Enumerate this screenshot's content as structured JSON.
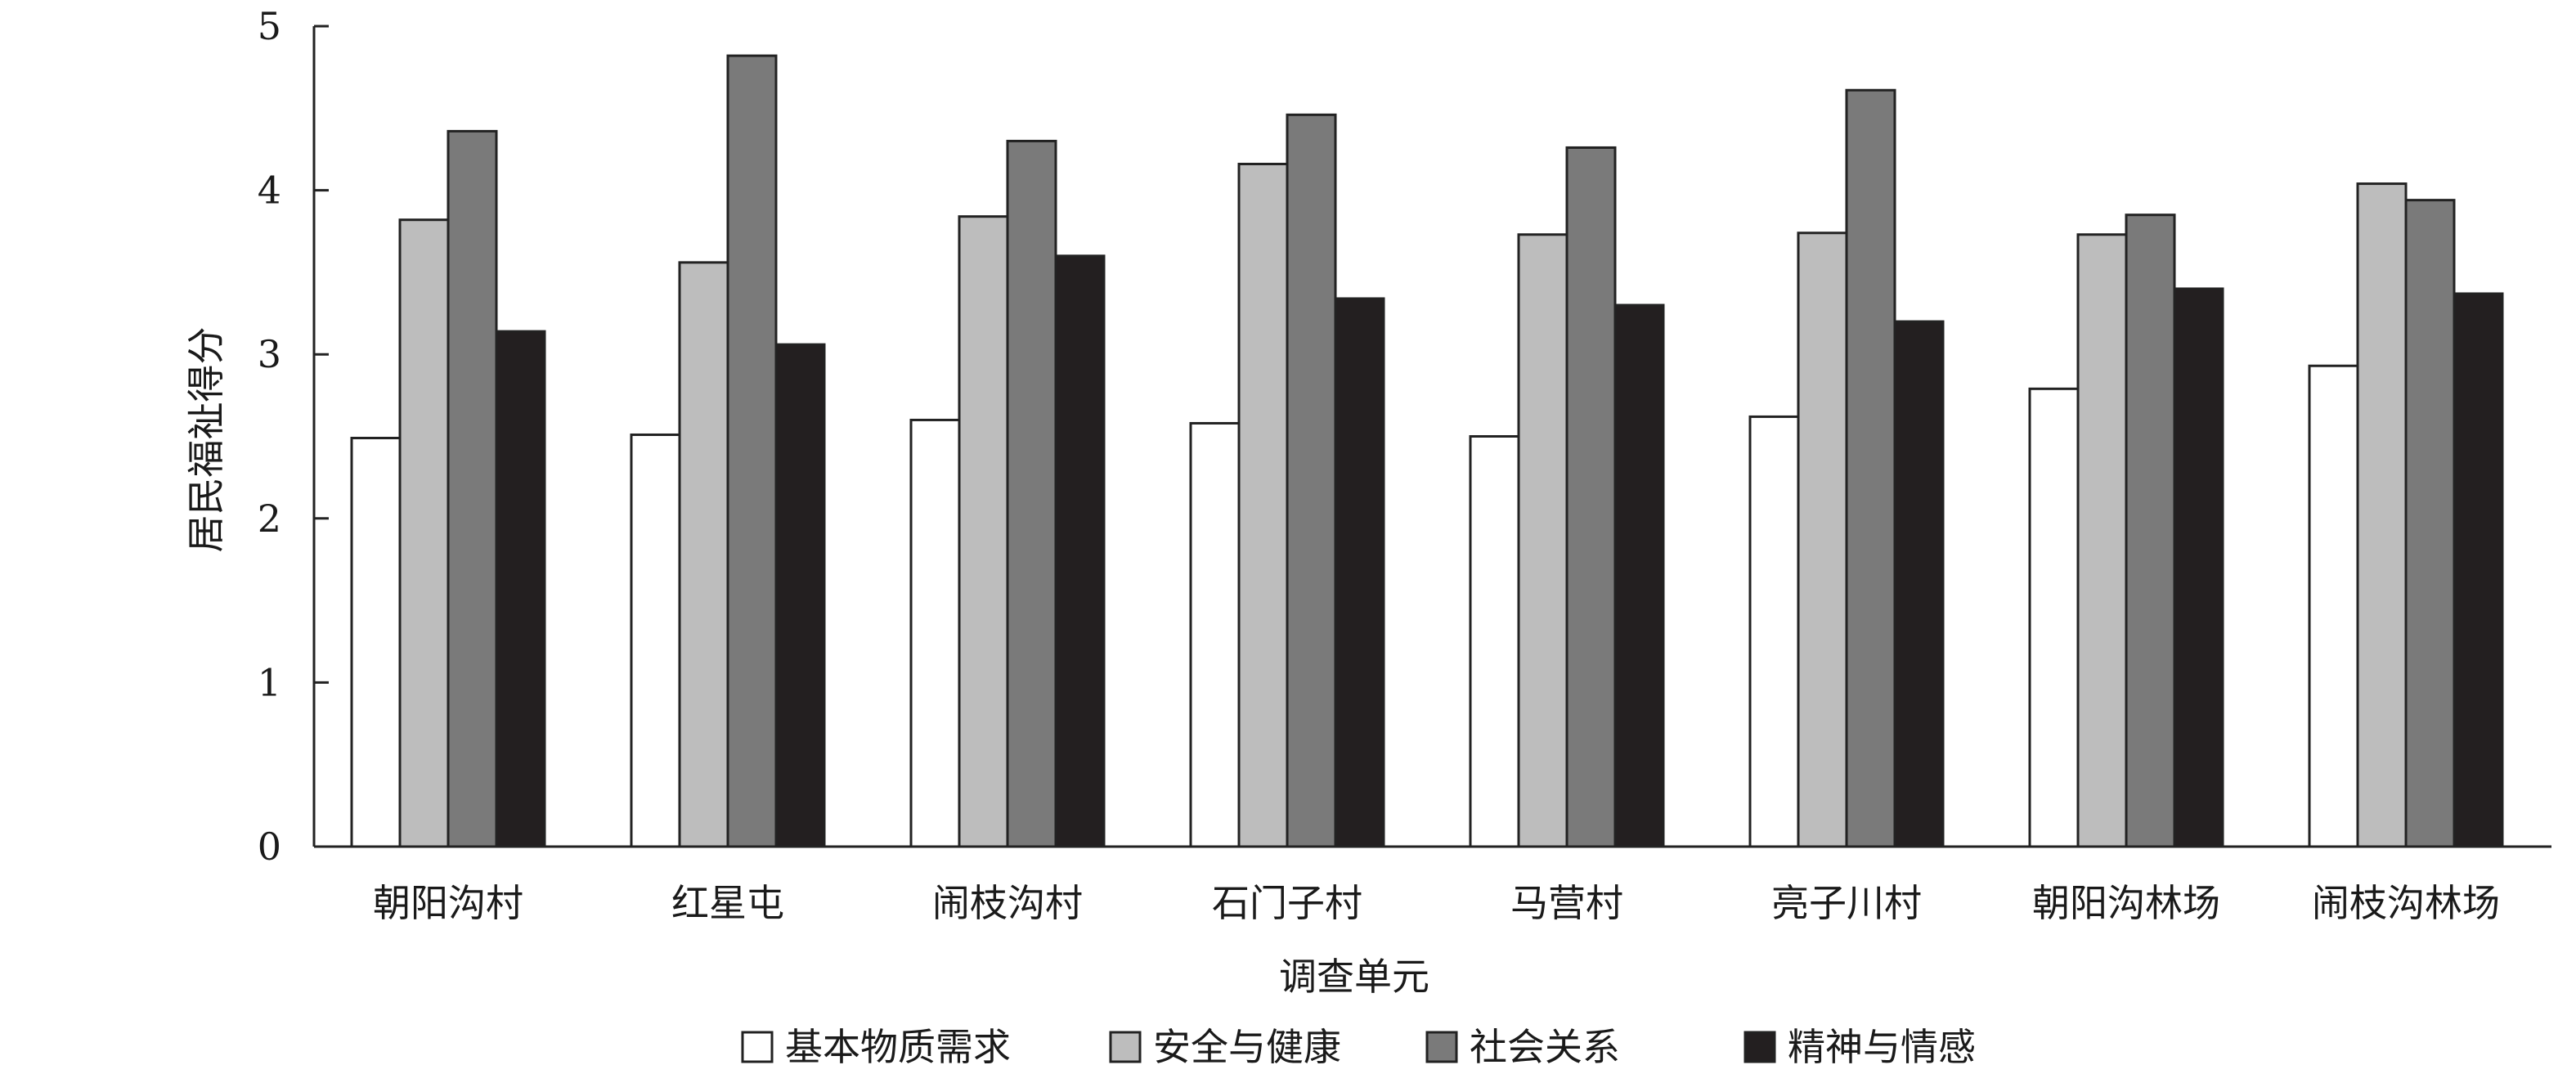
{
  "chart_data": {
    "type": "bar",
    "xlabel": "调查单元",
    "ylabel": "居民福祉得分",
    "ylim": [
      0,
      5
    ],
    "yticks": [
      "0",
      "1",
      "2",
      "3",
      "4",
      "5"
    ],
    "grid": false,
    "legend_position": "bottom",
    "categories": [
      "朝阳沟村",
      "红星屯",
      "闹枝沟村",
      "石门子村",
      "马营村",
      "亮子川村",
      "朝阳沟林场",
      "闹枝沟林场"
    ],
    "series": [
      {
        "name": "基本物质需求",
        "color": "#ffffff",
        "values": [
          2.49,
          2.51,
          2.6,
          2.58,
          2.5,
          2.62,
          2.79,
          2.93
        ]
      },
      {
        "name": "安全与健康",
        "color": "#bdbdbd",
        "values": [
          3.82,
          3.56,
          3.84,
          4.16,
          3.73,
          3.74,
          3.73,
          4.04
        ]
      },
      {
        "name": "社会关系",
        "color": "#7a7a7a",
        "values": [
          4.36,
          4.82,
          4.3,
          4.46,
          4.26,
          4.61,
          3.85,
          3.94
        ]
      },
      {
        "name": "精神与情感",
        "color": "#231f20",
        "values": [
          3.14,
          3.06,
          3.6,
          3.34,
          3.3,
          3.2,
          3.4,
          3.37
        ]
      }
    ]
  }
}
